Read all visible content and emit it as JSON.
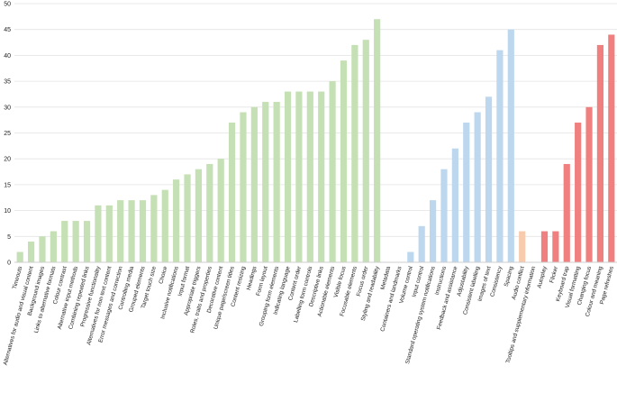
{
  "chart_data": {
    "type": "bar",
    "ylim": [
      0,
      50
    ],
    "yticks": [
      0,
      5,
      10,
      15,
      20,
      25,
      30,
      35,
      40,
      45,
      50
    ],
    "grid": true,
    "legend": "none",
    "colors": {
      "green": "#c5e0b4",
      "blue": "#bdd7ee",
      "orange": "#f8cbad",
      "red": "#f08080"
    },
    "categories": [
      "Timeouts",
      "Alternatives for audio and visual content",
      "Background images",
      "Links to alternative formats",
      "Colour contrast",
      "Alternative input methods",
      "Combining repeated links",
      "Progressive functionality",
      "Alternatives for non-text content",
      "Error messages and correction",
      "Controlling media",
      "Grouped elements",
      "Target touch size",
      "Choice",
      "Inclusive notifications",
      "Input format",
      "Appropriate triggers",
      "Roles, traits and properties",
      "Decorative content",
      "Unique page/screen titles",
      "Content resizing",
      "Headings",
      "Form layout",
      "Grouping form elements",
      "Indicating language",
      "Content order",
      "Labelling form controls",
      "Descriptive links",
      "Actionable elements",
      "Visible focus",
      "Focusable elements",
      "Focus order",
      "Styling and readability",
      "Metadata",
      "Containers and landmarks",
      "Volume control",
      "Input control",
      "Standard operating system notifications",
      "Instructions",
      "Feedback and assistance",
      "Adjustability",
      "Consistent labelling",
      "Images of text",
      "Consistency",
      "Spacing",
      "Audio conflict",
      "Tooltips and supplementary information",
      "Autoplay",
      "Flicker",
      "Keyboard trap",
      "Visual formatting",
      "Changing focus",
      "Colour and meaning",
      "Page refreshes"
    ],
    "values": [
      2,
      4,
      5,
      6,
      8,
      8,
      8,
      11,
      11,
      12,
      12,
      12,
      13,
      14,
      16,
      17,
      18,
      19,
      20,
      27,
      29,
      30,
      31,
      31,
      33,
      33,
      33,
      33,
      35,
      39,
      42,
      43,
      47,
      0,
      0,
      2,
      7,
      12,
      18,
      22,
      27,
      29,
      32,
      41,
      45,
      6,
      0,
      6,
      6,
      19,
      27,
      30,
      42,
      44
    ],
    "bar_colors": [
      "green",
      "green",
      "green",
      "green",
      "green",
      "green",
      "green",
      "green",
      "green",
      "green",
      "green",
      "green",
      "green",
      "green",
      "green",
      "green",
      "green",
      "green",
      "green",
      "green",
      "green",
      "green",
      "green",
      "green",
      "green",
      "green",
      "green",
      "green",
      "green",
      "green",
      "green",
      "green",
      "green",
      "green",
      "blue",
      "blue",
      "blue",
      "blue",
      "blue",
      "blue",
      "blue",
      "blue",
      "blue",
      "blue",
      "blue",
      "orange",
      "orange",
      "red",
      "red",
      "red",
      "red",
      "red",
      "red",
      "red"
    ]
  }
}
